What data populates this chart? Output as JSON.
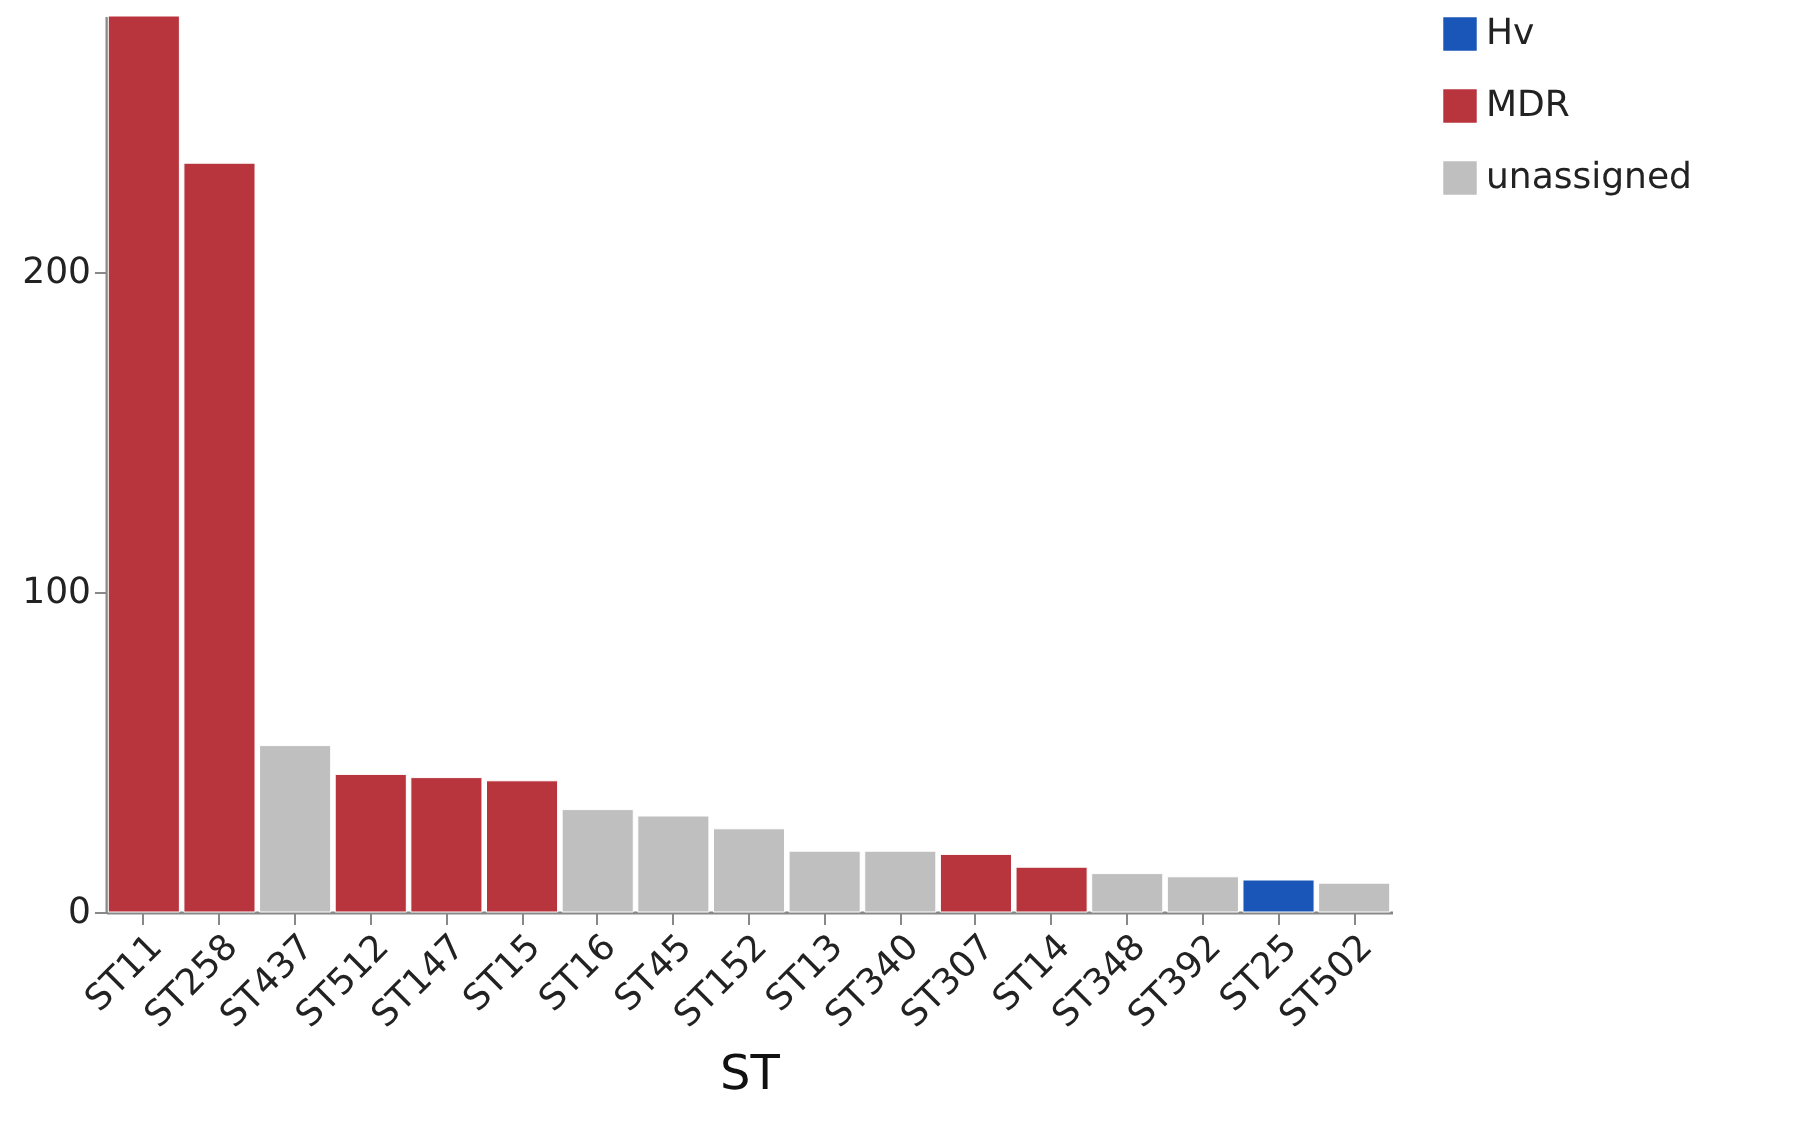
{
  "chart_data": {
    "type": "bar",
    "xlabel": "ST",
    "categories": [
      "ST11",
      "ST258",
      "ST437",
      "ST512",
      "ST147",
      "ST15",
      "ST16",
      "ST45",
      "ST152",
      "ST13",
      "ST340",
      "ST307",
      "ST14",
      "ST348",
      "ST392",
      "ST25",
      "ST502"
    ],
    "series": [
      {
        "name": "Hv",
        "color": "#1a56b8",
        "values": [
          null,
          null,
          null,
          null,
          null,
          null,
          null,
          null,
          null,
          null,
          null,
          null,
          null,
          null,
          null,
          10,
          null
        ]
      },
      {
        "name": "MDR",
        "color": "#b8353d",
        "values": [
          280,
          234,
          null,
          43,
          42,
          41,
          null,
          null,
          null,
          null,
          null,
          18,
          14,
          null,
          null,
          null,
          null
        ]
      },
      {
        "name": "unassigned",
        "color": "#c0bfc0",
        "values": [
          null,
          null,
          52,
          null,
          null,
          null,
          32,
          30,
          26,
          19,
          19,
          null,
          null,
          12,
          11,
          null,
          9
        ]
      }
    ],
    "ylim": [
      0,
      280
    ],
    "yticks": [
      0,
      100,
      200
    ],
    "grid": false,
    "legend": "top right"
  }
}
